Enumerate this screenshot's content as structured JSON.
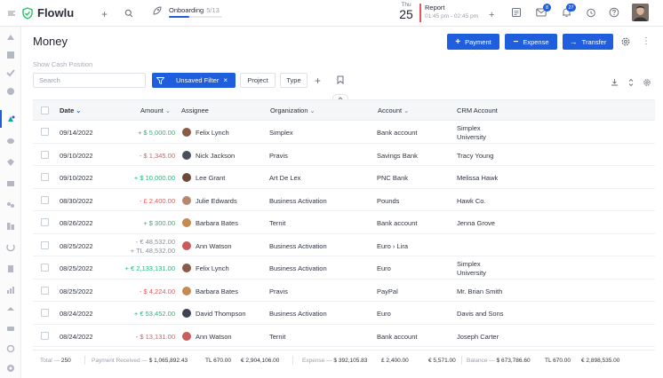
{
  "app": {
    "name": "Flowlu"
  },
  "topbar": {
    "onboarding_label": "Onboarding",
    "onboarding_progress_text": "5/13",
    "onboarding_progress": 0.3846,
    "day_name": "Thu",
    "day_number": "25",
    "event_title": "Report",
    "event_time": "01:45 pm - 02:45 pm",
    "badges": {
      "mail": "8",
      "notifications": "27"
    }
  },
  "page": {
    "title": "Money",
    "show_cash_position": "Show Cash Position",
    "buttons": {
      "payment": "Payment",
      "expense": "Expense",
      "transfer": "Transfer"
    }
  },
  "filters": {
    "search_placeholder": "Search",
    "unsaved_filter": "Unsaved Filter",
    "project": "Project",
    "type": "Type"
  },
  "table": {
    "columns": {
      "date": "Date",
      "amount": "Amount",
      "assignee": "Assignee",
      "organization": "Organization",
      "account": "Account",
      "crm_account": "CRM Account"
    },
    "rows": [
      {
        "date": "09/14/2022",
        "amount": "+ $ 5,000.00",
        "amount2": "",
        "sign": "pos",
        "assignee": "Felix Lynch",
        "avatar_color": "#8a5a44",
        "organization": "Simplex",
        "account": "Bank account",
        "crm1": "Simplex",
        "crm2": "University"
      },
      {
        "date": "09/10/2022",
        "amount": "- $ 1,345.00",
        "amount2": "",
        "sign": "neg",
        "assignee": "Nick Jackson",
        "avatar_color": "#4a4f5c",
        "organization": "Pravis",
        "account": "Savings Bank",
        "crm1": "Tracy Young",
        "crm2": ""
      },
      {
        "date": "09/10/2022",
        "amount": "+ $ 10,000.00",
        "amount2": "",
        "sign": "pos",
        "assignee": "Lee Grant",
        "avatar_color": "#6b4a3a",
        "organization": "Art De Lex",
        "account": "PNC Bank",
        "crm1": "Melissa Hawk",
        "crm2": ""
      },
      {
        "date": "08/30/2022",
        "amount": "- £ 2,400.00",
        "amount2": "",
        "sign": "neg",
        "assignee": "Julie Edwards",
        "avatar_color": "#b9876a",
        "organization": "Business Activation",
        "account": "Pounds",
        "crm1": "Hawk Co.",
        "crm2": ""
      },
      {
        "date": "08/26/2022",
        "amount": "+ $ 300.00",
        "amount2": "",
        "sign": "pos",
        "assignee": "Barbara Bates",
        "avatar_color": "#c58a52",
        "organization": "Ternit",
        "account": "Bank account",
        "crm1": "Jenna Grove",
        "crm2": ""
      },
      {
        "date": "08/25/2022",
        "amount": "- € 48,532.00",
        "amount2": "+ TL 48,532.00",
        "sign": "mixed",
        "assignee": "Ann Watson",
        "avatar_color": "#c95b5b",
        "organization": "Business Activation",
        "account": "Euro › Lira",
        "crm1": "",
        "crm2": ""
      },
      {
        "date": "08/25/2022",
        "amount": "+ € 2,133,131.00",
        "amount2": "",
        "sign": "pos",
        "assignee": "Felix Lynch",
        "avatar_color": "#8a5a44",
        "organization": "Business Activation",
        "account": "Euro",
        "crm1": "Simplex",
        "crm2": "University"
      },
      {
        "date": "08/25/2022",
        "amount": "- $ 4,224.00",
        "amount2": "",
        "sign": "neg",
        "assignee": "Barbara Bates",
        "avatar_color": "#c58a52",
        "organization": "Pravis",
        "account": "PayPal",
        "crm1": "Mr. Brian Smith",
        "crm2": ""
      },
      {
        "date": "08/24/2022",
        "amount": "+ € 53,452.00",
        "amount2": "",
        "sign": "pos",
        "assignee": "David Thompson",
        "avatar_color": "#3f4452",
        "organization": "Business Activation",
        "account": "Euro",
        "crm1": "Davis and Sons",
        "crm2": ""
      },
      {
        "date": "08/24/2022",
        "amount": "- $ 13,131.00",
        "amount2": "",
        "sign": "neg",
        "assignee": "Ann Watson",
        "avatar_color": "#c95b5b",
        "organization": "Ternit",
        "account": "Bank account",
        "crm1": "Joseph Carter",
        "crm2": ""
      }
    ]
  },
  "footer": {
    "total_label": "Total —",
    "total_value": "250",
    "payment_label": "Payment Received —",
    "payment_usd": "$ 1,065,892.43",
    "payment_tl": "TL 670.00",
    "payment_eur": "€ 2,904,106.00",
    "expense_label": "Expense —",
    "expense_usd": "$ 392,105.83",
    "expense_gbp": "£ 2,400.00",
    "expense_eur": "€ 5,571.00",
    "balance_label": "Balance —",
    "balance_usd": "$ 673,786.60",
    "balance_tl": "TL 670.00",
    "balance_eur": "€ 2,898,535.00"
  },
  "colors": {
    "accent": "#1f5fde",
    "positive": "#25b77a",
    "negative": "#e05a5a",
    "logo": "#27c46b"
  }
}
